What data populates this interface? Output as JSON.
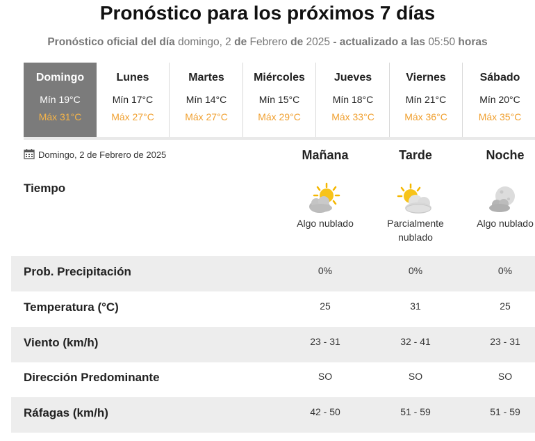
{
  "header": {
    "title": "Pronóstico para los próximos 7 días",
    "sub_prefix": "Pronóstico oficial del día",
    "sub_weekday": "domingo, 2",
    "sub_de1": "de",
    "sub_month": "Febrero",
    "sub_de2": "de",
    "sub_year": "2025",
    "sub_updated": "- actualizado a las",
    "sub_time": "05:50",
    "sub_hours": "horas"
  },
  "days": [
    {
      "name": "Domingo",
      "min": "Mín 19°C",
      "max": "Máx 31°C",
      "selected": true
    },
    {
      "name": "Lunes",
      "min": "Mín 17°C",
      "max": "Máx 27°C",
      "selected": false
    },
    {
      "name": "Martes",
      "min": "Mín 14°C",
      "max": "Máx 27°C",
      "selected": false
    },
    {
      "name": "Miércoles",
      "min": "Mín 15°C",
      "max": "Máx 29°C",
      "selected": false
    },
    {
      "name": "Jueves",
      "min": "Mín 18°C",
      "max": "Máx 33°C",
      "selected": false
    },
    {
      "name": "Viernes",
      "min": "Mín 21°C",
      "max": "Máx 36°C",
      "selected": false
    },
    {
      "name": "Sábado",
      "min": "Mín 20°C",
      "max": "Máx 35°C",
      "selected": false
    }
  ],
  "detail": {
    "date": "Domingo, 2 de Febrero de 2025",
    "date_icon": "calendar-icon",
    "periods": [
      "Mañana",
      "Tarde",
      "Noche"
    ],
    "tiempo_label": "Tiempo",
    "weather": [
      {
        "icon": "sun-behind-cloud-icon",
        "desc": "Algo nublado"
      },
      {
        "icon": "sun-behind-large-cloud-icon",
        "desc_line1": "Parcialmente",
        "desc_line2": "nublado"
      },
      {
        "icon": "moon-behind-cloud-icon",
        "desc": "Algo nublado"
      }
    ],
    "rows": [
      {
        "label": "Prob. Precipitación",
        "values": [
          "0%",
          "0%",
          "0%"
        ],
        "shaded": true
      },
      {
        "label": "Temperatura (°C)",
        "values": [
          "25",
          "31",
          "25"
        ],
        "shaded": false
      },
      {
        "label": "Viento (km/h)",
        "values": [
          "23 - 31",
          "32 - 41",
          "23 - 31"
        ],
        "shaded": true
      },
      {
        "label": "Dirección Predominante",
        "values": [
          "SO",
          "SO",
          "SO"
        ],
        "shaded": false
      },
      {
        "label": "Ráfagas (km/h)",
        "values": [
          "42 - 50",
          "51 - 59",
          "51 - 59"
        ],
        "shaded": true
      }
    ]
  },
  "colors": {
    "selected_day_bg": "#7b7b7b",
    "max_temp": "#f0a030",
    "row_shade": "#ededed"
  }
}
